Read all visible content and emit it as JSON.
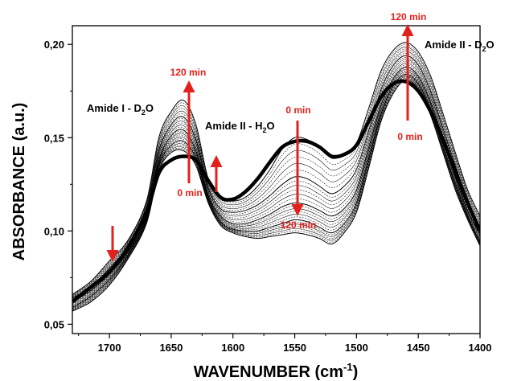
{
  "chart_data": {
    "type": "line",
    "xlabel_main": "WAVENUMBER (cm",
    "xlabel_sup": "-1",
    "xlabel_end": ")",
    "ylabel": "ABSORBANCE (a.u.)",
    "x_reversed": true,
    "xlim": [
      1730,
      1400
    ],
    "ylim": [
      0.045,
      0.21
    ],
    "xticks": [
      1700,
      1650,
      1600,
      1550,
      1500,
      1450,
      1400
    ],
    "xtick_labels": [
      "1700",
      "1650",
      "1600",
      "1550",
      "1500",
      "1450",
      "1400"
    ],
    "yticks": [
      0.05,
      0.1,
      0.15,
      0.2
    ],
    "ytick_labels": [
      "0,05",
      "0,10",
      "0,15",
      "0,20"
    ],
    "line_color": "#000000",
    "arrow_color": "#e3201b",
    "series": [
      {
        "emphasis": "thin",
        "x": [
          1730,
          1715,
          1700,
          1685,
          1670,
          1660,
          1650,
          1640,
          1630,
          1620,
          1610,
          1600,
          1590,
          1580,
          1570,
          1560,
          1550,
          1540,
          1530,
          1520,
          1510,
          1500,
          1490,
          1480,
          1470,
          1460,
          1450,
          1440,
          1430,
          1420,
          1410,
          1400
        ],
        "y": [
          0.066,
          0.073,
          0.084,
          0.095,
          0.116,
          0.15,
          0.164,
          0.17,
          0.157,
          0.128,
          0.118,
          0.116,
          0.118,
          0.124,
          0.133,
          0.144,
          0.15,
          0.149,
          0.145,
          0.139,
          0.141,
          0.147,
          0.166,
          0.186,
          0.197,
          0.201,
          0.196,
          0.183,
          0.163,
          0.142,
          0.122,
          0.108
        ]
      },
      {
        "emphasis": "thin",
        "x": [
          1730,
          1715,
          1700,
          1685,
          1670,
          1660,
          1650,
          1640,
          1630,
          1620,
          1610,
          1600,
          1590,
          1580,
          1570,
          1560,
          1550,
          1540,
          1530,
          1520,
          1510,
          1500,
          1490,
          1480,
          1470,
          1460,
          1450,
          1440,
          1430,
          1420,
          1410,
          1400
        ],
        "y": [
          0.064,
          0.07,
          0.08,
          0.092,
          0.112,
          0.143,
          0.157,
          0.161,
          0.149,
          0.123,
          0.112,
          0.11,
          0.111,
          0.114,
          0.119,
          0.125,
          0.129,
          0.128,
          0.124,
          0.12,
          0.124,
          0.133,
          0.154,
          0.176,
          0.189,
          0.194,
          0.189,
          0.175,
          0.155,
          0.135,
          0.116,
          0.102
        ]
      },
      {
        "emphasis": "thin",
        "x": [
          1730,
          1715,
          1700,
          1685,
          1670,
          1660,
          1650,
          1640,
          1630,
          1620,
          1610,
          1600,
          1590,
          1580,
          1570,
          1560,
          1550,
          1540,
          1530,
          1520,
          1510,
          1500,
          1490,
          1480,
          1470,
          1460,
          1450,
          1440,
          1430,
          1420,
          1410,
          1400
        ],
        "y": [
          0.062,
          0.068,
          0.077,
          0.089,
          0.108,
          0.138,
          0.151,
          0.154,
          0.143,
          0.119,
          0.108,
          0.104,
          0.104,
          0.106,
          0.109,
          0.113,
          0.115,
          0.114,
          0.111,
          0.108,
          0.112,
          0.122,
          0.145,
          0.168,
          0.182,
          0.188,
          0.183,
          0.169,
          0.149,
          0.129,
          0.111,
          0.098
        ]
      },
      {
        "emphasis": "thin",
        "x": [
          1730,
          1715,
          1700,
          1685,
          1670,
          1660,
          1650,
          1640,
          1630,
          1620,
          1610,
          1600,
          1590,
          1580,
          1570,
          1560,
          1550,
          1540,
          1530,
          1520,
          1510,
          1500,
          1490,
          1480,
          1470,
          1460,
          1450,
          1440,
          1430,
          1420,
          1410,
          1400
        ],
        "y": [
          0.059,
          0.065,
          0.074,
          0.087,
          0.106,
          0.135,
          0.146,
          0.148,
          0.139,
          0.117,
          0.105,
          0.101,
          0.1,
          0.1,
          0.102,
          0.104,
          0.106,
          0.105,
          0.102,
          0.099,
          0.104,
          0.115,
          0.139,
          0.163,
          0.178,
          0.184,
          0.179,
          0.165,
          0.145,
          0.125,
          0.108,
          0.094
        ]
      },
      {
        "emphasis": "thin",
        "x": [
          1730,
          1715,
          1700,
          1685,
          1670,
          1660,
          1650,
          1640,
          1630,
          1620,
          1610,
          1600,
          1590,
          1580,
          1570,
          1560,
          1550,
          1540,
          1530,
          1520,
          1510,
          1500,
          1490,
          1480,
          1470,
          1460,
          1450,
          1440,
          1430,
          1420,
          1410,
          1400
        ],
        "y": [
          0.057,
          0.062,
          0.071,
          0.085,
          0.104,
          0.132,
          0.142,
          0.143,
          0.135,
          0.115,
          0.103,
          0.099,
          0.097,
          0.096,
          0.097,
          0.098,
          0.099,
          0.098,
          0.096,
          0.093,
          0.099,
          0.11,
          0.134,
          0.159,
          0.174,
          0.181,
          0.176,
          0.162,
          0.142,
          0.122,
          0.106,
          0.092
        ]
      },
      {
        "emphasis": "thick",
        "x": [
          1730,
          1715,
          1700,
          1685,
          1670,
          1660,
          1650,
          1640,
          1630,
          1620,
          1610,
          1600,
          1590,
          1580,
          1570,
          1560,
          1550,
          1540,
          1530,
          1520,
          1510,
          1500,
          1490,
          1480,
          1470,
          1460,
          1450,
          1440,
          1430,
          1420,
          1410,
          1400
        ],
        "y": [
          0.062,
          0.07,
          0.078,
          0.091,
          0.11,
          0.131,
          0.138,
          0.14,
          0.138,
          0.127,
          0.118,
          0.117,
          0.121,
          0.128,
          0.137,
          0.145,
          0.148,
          0.148,
          0.145,
          0.14,
          0.141,
          0.146,
          0.159,
          0.172,
          0.179,
          0.18,
          0.175,
          0.164,
          0.149,
          0.132,
          0.115,
          0.1
        ]
      }
    ],
    "annotations": {
      "amide1_d2o_main": "Amide I - D",
      "amide1_d2o_sub": "2",
      "amide1_d2o_end": "O",
      "amide2_h2o_main": "Amide II - H",
      "amide2_h2o_sub": "2",
      "amide2_h2o_end": "O",
      "amide2_d2o_main": "Amide II - D",
      "amide2_d2o_sub": "2",
      "amide2_d2o_end": "O",
      "label_120_left": "120 min",
      "label_0_left": "0 min",
      "label_0_mid": "0 min",
      "label_120_mid": "120 min",
      "label_120_right": "120 min",
      "label_0_right": "0 min"
    }
  }
}
